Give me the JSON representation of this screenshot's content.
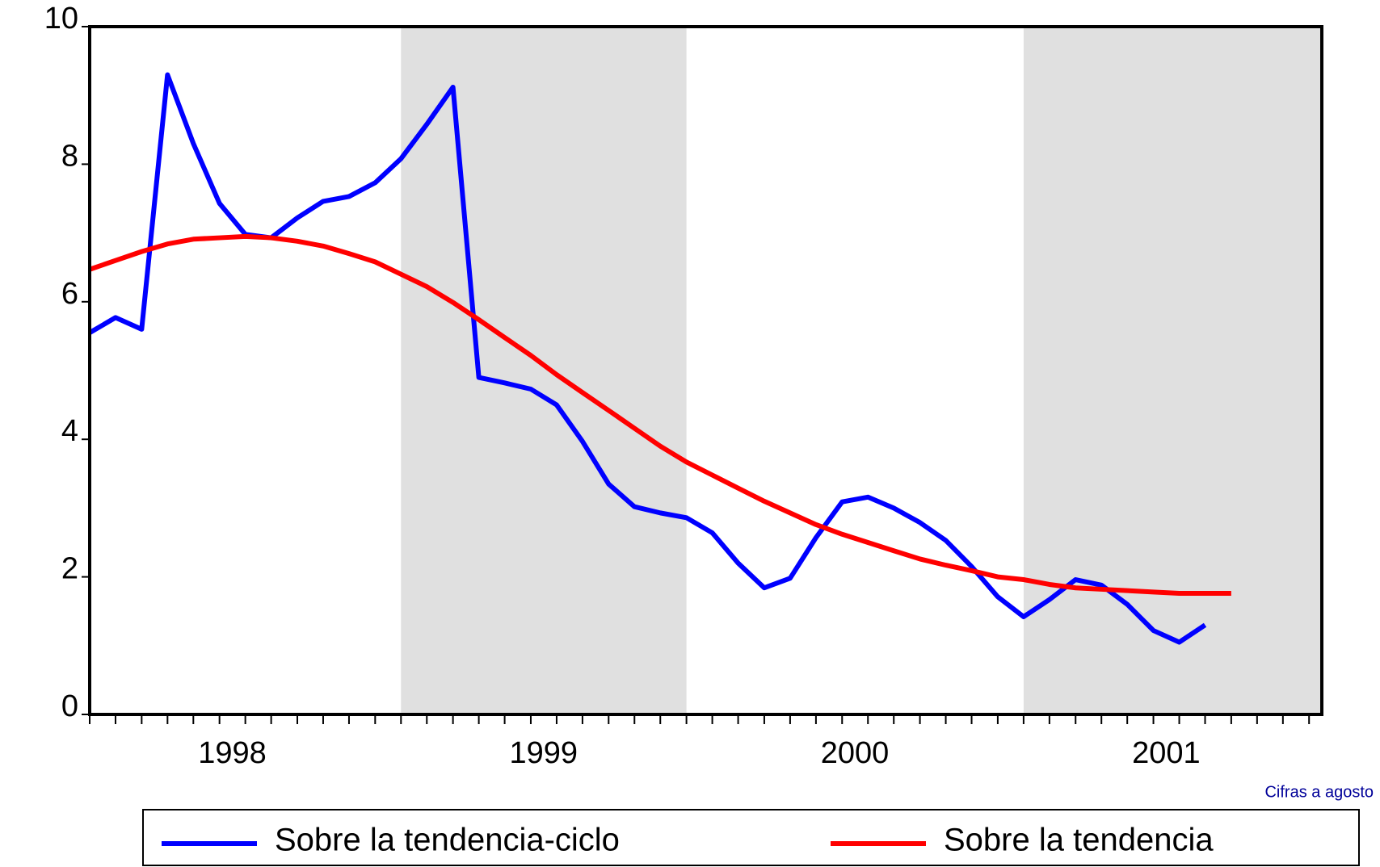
{
  "chart_data": {
    "type": "line",
    "x": [
      1998,
      1998.083,
      1998.167,
      1998.25,
      1998.333,
      1998.417,
      1998.5,
      1998.583,
      1998.667,
      1998.75,
      1998.833,
      1998.917,
      1999,
      1999.083,
      1999.167,
      1999.25,
      1999.333,
      1999.417,
      1999.5,
      1999.583,
      1999.667,
      1999.75,
      1999.833,
      1999.917,
      2000,
      2000.083,
      2000.167,
      2000.25,
      2000.333,
      2000.417,
      2000.5,
      2000.583,
      2000.667,
      2000.75,
      2000.833,
      2000.917,
      2001,
      2001.083,
      2001.167,
      2001.25,
      2001.333,
      2001.417,
      2001.5,
      2001.583,
      2001.667,
      2001.75,
      2001.833,
      2001.917
    ],
    "series": [
      {
        "name": "Sobre la tendencia-ciclo",
        "color": "#0000ff",
        "values": [
          5.55,
          5.77,
          5.6,
          9.3,
          8.3,
          7.43,
          6.98,
          6.93,
          7.22,
          7.46,
          7.53,
          7.73,
          8.08,
          8.58,
          9.12,
          4.9,
          4.82,
          4.73,
          4.5,
          3.97,
          3.35,
          3.02,
          2.93,
          2.86,
          2.64,
          2.2,
          1.84,
          1.98,
          2.57,
          3.09,
          3.16,
          3.0,
          2.79,
          2.53,
          2.15,
          1.71,
          1.42,
          1.67,
          1.96,
          1.88,
          1.6,
          1.22,
          1.05,
          1.3,
          null,
          null,
          null,
          null
        ]
      },
      {
        "name": "Sobre la tendencia",
        "color": "#ff0000",
        "values": [
          6.47,
          6.6,
          6.73,
          6.84,
          6.91,
          6.93,
          6.95,
          6.93,
          6.88,
          6.81,
          6.7,
          6.58,
          6.4,
          6.22,
          5.99,
          5.74,
          5.48,
          5.22,
          4.94,
          4.68,
          4.42,
          4.16,
          3.9,
          3.67,
          3.48,
          3.29,
          3.1,
          2.93,
          2.76,
          2.62,
          2.5,
          2.38,
          2.26,
          2.17,
          2.09,
          2.0,
          1.96,
          1.89,
          1.84,
          1.82,
          1.8,
          1.78,
          1.76,
          1.76,
          1.76,
          null,
          null,
          null
        ]
      }
    ],
    "xlim": [
      1998,
      2001.958
    ],
    "xticks": [
      {
        "value": 1998.458,
        "label": "1998"
      },
      {
        "value": 1999.458,
        "label": "1999"
      },
      {
        "value": 2000.458,
        "label": "2000"
      },
      {
        "value": 2001.458,
        "label": "2001"
      }
    ],
    "ylim": [
      0,
      10
    ],
    "yticks": [
      0,
      2,
      4,
      6,
      8,
      10
    ],
    "shaded_ranges": [
      [
        1999,
        1999.917
      ],
      [
        2001,
        2001.958
      ]
    ],
    "shade_color": "#e0e0e0",
    "note": "Cifras a agosto"
  }
}
